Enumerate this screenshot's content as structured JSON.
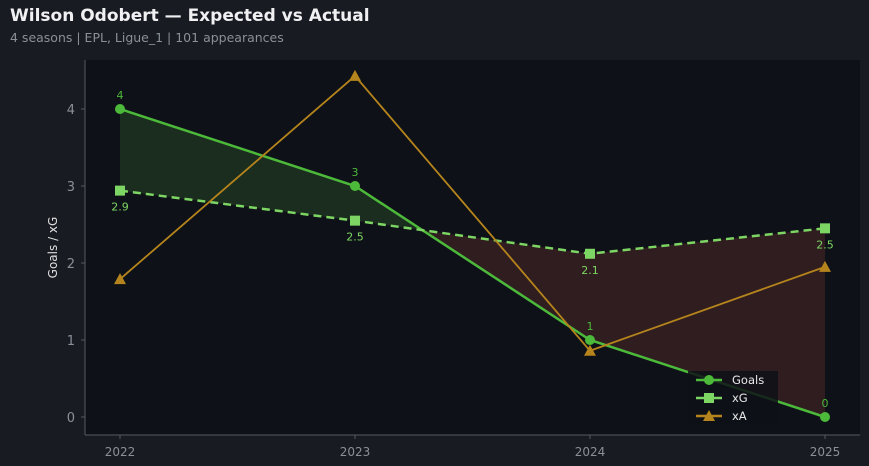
{
  "header": {
    "title": "Wilson Odobert — Expected vs Actual",
    "subtitle": "4 seasons | EPL, Ligue_1 | 101 appearances"
  },
  "chart_data": {
    "type": "line",
    "categories": [
      "2022",
      "2023",
      "2024",
      "2025"
    ],
    "ylabel": "Goals / xG",
    "xlabel": "",
    "ylim": [
      -0.2,
      4.6
    ],
    "yticks": [
      0,
      1,
      2,
      3,
      4
    ],
    "grid": false,
    "legend": "bottom-right",
    "series": [
      {
        "name": "Goals",
        "values": [
          4,
          3,
          1,
          0
        ],
        "labels": [
          "4",
          "3",
          "1",
          "0"
        ],
        "color": "#4cb93a",
        "marker": "circle",
        "dash": false
      },
      {
        "name": "xG",
        "values": [
          2.94,
          2.55,
          2.12,
          2.45
        ],
        "labels": [
          "2.9",
          "2.5",
          "2.1",
          "2.5"
        ],
        "color": "#7dd663",
        "marker": "square",
        "dash": true
      },
      {
        "name": "xA",
        "values": [
          1.79,
          4.43,
          0.86,
          1.95
        ],
        "color": "#b5841c",
        "marker": "triangle",
        "dash": false
      }
    ],
    "fill_colors": {
      "over": "#1b2d1e",
      "under": "#2f1d1f"
    }
  }
}
